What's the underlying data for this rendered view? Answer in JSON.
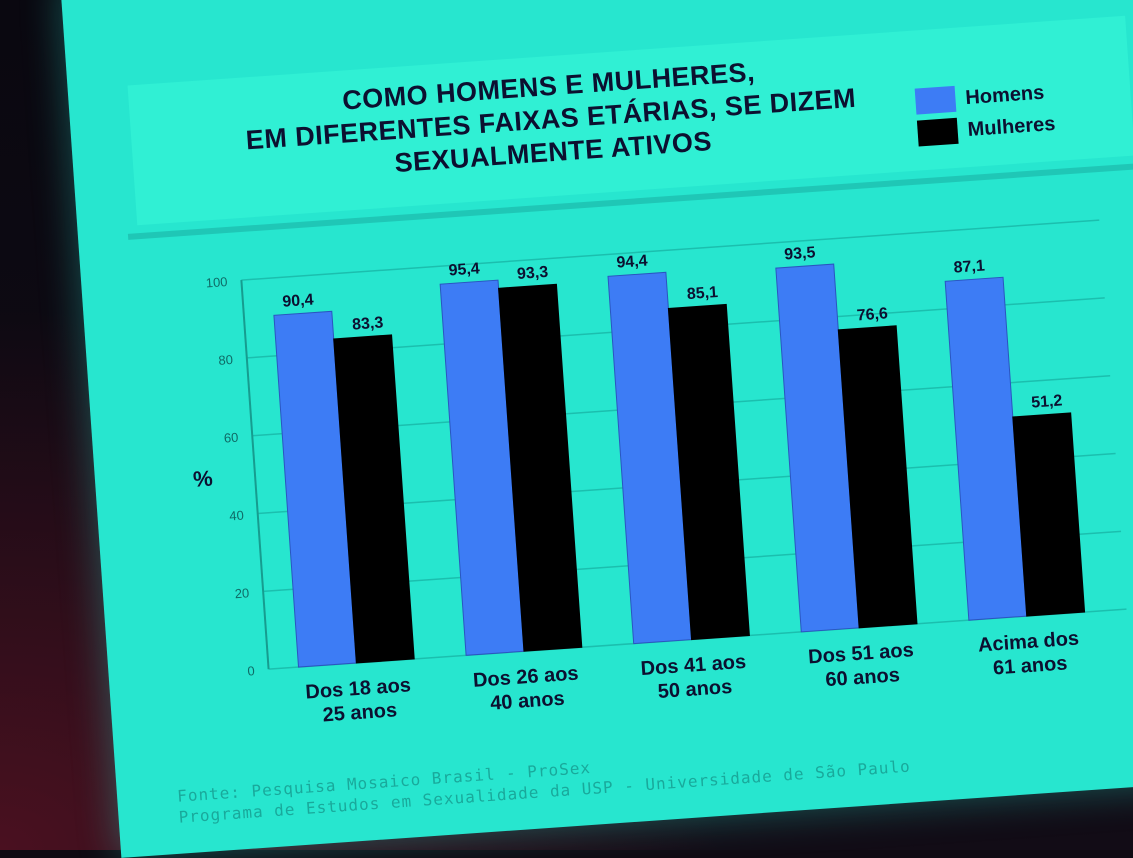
{
  "slide": {
    "title_lines": [
      "COMO HOMENS E MULHERES,",
      "EM DIFERENTES FAIXAS ETÁRIAS, SE DIZEM",
      "SEXUALMENTE ATIVOS"
    ],
    "source_lines": [
      "Fonte: Pesquisa Mosaico Brasil - ProSex",
      "Programa de Estudos em Sexualidade da USP - Universidade de São Paulo"
    ]
  },
  "colors": {
    "screen": "#27e6cf",
    "homens": "#3d7cf5",
    "mulheres": "#000000",
    "text": "#0c1030"
  },
  "chart_data": {
    "type": "bar",
    "title": "COMO HOMENS E MULHERES, EM DIFERENTES FAIXAS ETÁRIAS, SE DIZEM SEXUALMENTE ATIVOS",
    "ylabel": "%",
    "xlabel": "",
    "ylim": [
      0,
      100
    ],
    "yticks": [
      0,
      20,
      40,
      60,
      80,
      100
    ],
    "grid": true,
    "legend_position": "top-right",
    "categories": [
      [
        "Dos 18 aos",
        "25 anos"
      ],
      [
        "Dos 26 aos",
        "40 anos"
      ],
      [
        "Dos 41 aos",
        "50 anos"
      ],
      [
        "Dos 51 aos",
        "60 anos"
      ],
      [
        "Acima dos",
        "61 anos"
      ]
    ],
    "series": [
      {
        "name": "Homens",
        "color": "#3d7cf5",
        "values": [
          90.4,
          95.4,
          94.4,
          93.5,
          87.1
        ],
        "labels": [
          "90,4",
          "95,4",
          "94,4",
          "93,5",
          "87,1"
        ]
      },
      {
        "name": "Mulheres",
        "color": "#000000",
        "values": [
          83.3,
          93.3,
          85.1,
          76.6,
          51.2
        ],
        "labels": [
          "83,3",
          "93,3",
          "85,1",
          "76,6",
          "51,2"
        ]
      }
    ]
  }
}
